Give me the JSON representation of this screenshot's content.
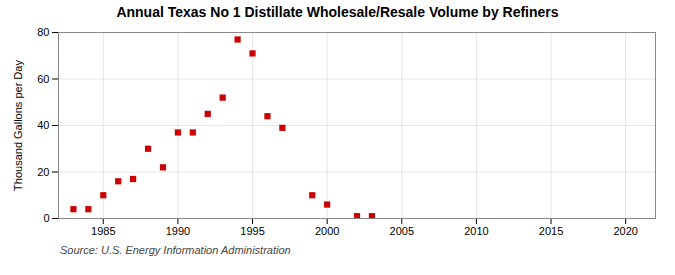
{
  "chart_data": {
    "type": "scatter",
    "title": "Annual Texas No 1 Distillate Wholesale/Resale Volume by Refiners",
    "ylabel": "Thousand Gallons per Day",
    "source": "Source: U.S. Energy Information Administration",
    "x": [
      1983,
      1984,
      1985,
      1986,
      1987,
      1988,
      1989,
      1990,
      1991,
      1992,
      1993,
      1994,
      1995,
      1996,
      1997,
      1999,
      2000,
      2002,
      2003
    ],
    "values": [
      4,
      4,
      10,
      16,
      17,
      30,
      22,
      37,
      37,
      45,
      52,
      77,
      71,
      44,
      39,
      10,
      6,
      1,
      1
    ],
    "color": "#cc0000",
    "marker": "square",
    "xlim": [
      1982,
      2022
    ],
    "xticks": [
      1985,
      1990,
      1995,
      2000,
      2005,
      2010,
      2015,
      2020
    ],
    "ylim": [
      0,
      80
    ],
    "yticks": [
      0,
      20,
      40,
      60,
      80
    ],
    "grid": true
  }
}
